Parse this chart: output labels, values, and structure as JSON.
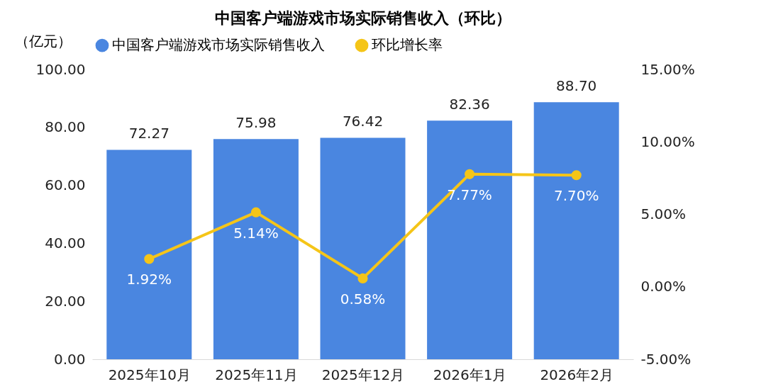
{
  "chart_data": {
    "type": "bar",
    "title": "中国客户端游戏市场实际销售收入（环比）",
    "ylabel": "（亿元）",
    "categories": [
      "2025年10月",
      "2025年11月",
      "2025年12月",
      "2026年1月",
      "2026年2月"
    ],
    "series": [
      {
        "name": "中国客户端游戏市场实际销售收入",
        "color": "#4a86e0",
        "values": [
          72.27,
          75.98,
          76.42,
          82.36,
          88.7
        ],
        "value_labels": [
          "72.27",
          "75.98",
          "76.42",
          "82.36",
          "88.70"
        ]
      },
      {
        "name": "环比增长率",
        "type": "line",
        "axis": "y2",
        "color": "#f5c518",
        "marker": "circle",
        "values": [
          1.92,
          5.14,
          0.58,
          7.77,
          7.7
        ],
        "value_labels": [
          "1.92%",
          "5.14%",
          "0.58%",
          "7.77%",
          "7.70%"
        ]
      }
    ],
    "ylim": [
      0,
      100
    ],
    "yticks": [
      {
        "value": 0,
        "label": "0.00"
      },
      {
        "value": 20,
        "label": "20.00"
      },
      {
        "value": 40,
        "label": "40.00"
      },
      {
        "value": 60,
        "label": "60.00"
      },
      {
        "value": 80,
        "label": "80.00"
      },
      {
        "value": 100,
        "label": "100.00"
      }
    ],
    "y2lim": [
      -5,
      15
    ],
    "y2ticks": [
      {
        "value": -5,
        "label": "-5.00%"
      },
      {
        "value": 0,
        "label": "0.00%"
      },
      {
        "value": 5,
        "label": "5.00%"
      },
      {
        "value": 10,
        "label": "10.00%"
      },
      {
        "value": 15,
        "label": "15.00%"
      }
    ],
    "grid": false,
    "legend": "top"
  }
}
